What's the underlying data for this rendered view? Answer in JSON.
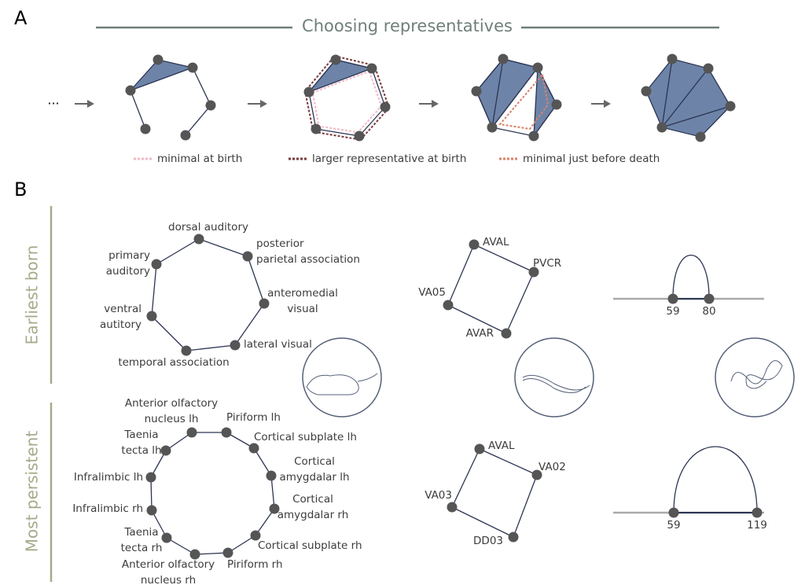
{
  "panel_a": {
    "label": "A",
    "title": "Choosing representatives",
    "ellipsis": "...",
    "legend": [
      "minimal at birth",
      "larger representative at birth",
      "minimal just before death"
    ]
  },
  "panel_b": {
    "label": "B",
    "row_labels": [
      "Earliest born",
      "Most persistent"
    ],
    "mouse_earliest": [
      [
        "dorsal auditory"
      ],
      [
        "posterior",
        "parietal association"
      ],
      [
        "anteromedial",
        "visual"
      ],
      [
        "lateral visual"
      ],
      [
        "temporal association"
      ],
      [
        "ventral",
        "autitory"
      ],
      [
        "primary",
        "auditory"
      ]
    ],
    "worm_earliest": [
      "AVAL",
      "PVCR",
      "AVAR",
      "VA05"
    ],
    "arc_earliest": [
      "59",
      "80"
    ],
    "mouse_persistent": [
      [
        "Anterior olfactory",
        "nucleus lh"
      ],
      [
        "Piriform lh"
      ],
      [
        "Cortical subplate lh"
      ],
      [
        "Cortical",
        "amygdalar lh"
      ],
      [
        "Cortical",
        "amygdalar rh"
      ],
      [
        "Cortical subplate rh"
      ],
      [
        "Piriform rh"
      ],
      [
        "Anterior olfactory",
        "nucleus rh"
      ],
      [
        "Taenia",
        "tecta rh"
      ],
      [
        "Infralimbic rh"
      ],
      [
        "Infralimbic lh"
      ],
      [
        "Taenia",
        "tecta lh"
      ]
    ],
    "worm_persistent": [
      "AVAL",
      "VA02",
      "DD03",
      "VA03"
    ],
    "arc_persistent": [
      "59",
      "119"
    ]
  }
}
